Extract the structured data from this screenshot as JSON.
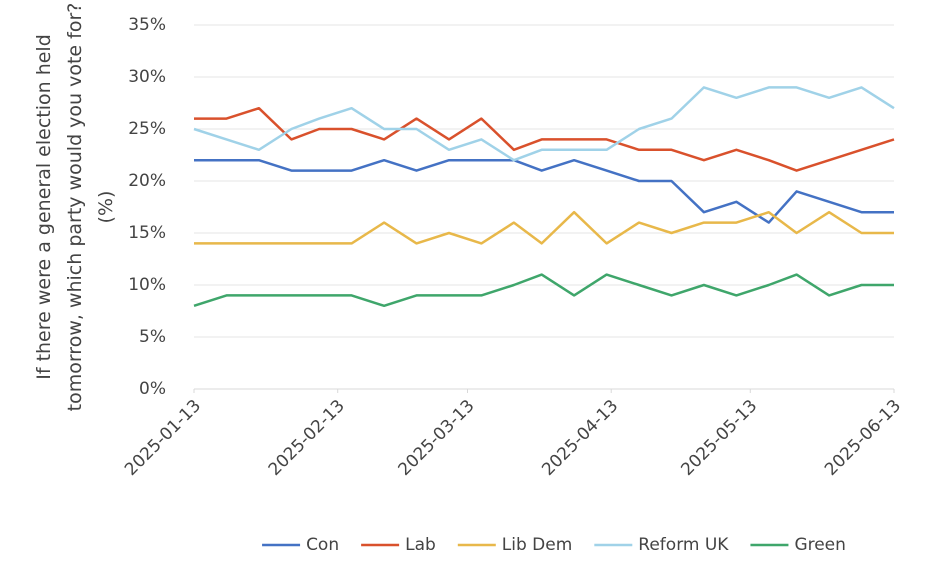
{
  "chart_data": {
    "type": "line",
    "ylabel": [
      "If there were a general election held",
      "tomorrow, which party would you vote for?",
      "(%)"
    ],
    "x": [
      "2025-01-13",
      "2025-01-20",
      "2025-01-27",
      "2025-02-03",
      "2025-02-09",
      "2025-02-16",
      "2025-02-23",
      "2025-03-02",
      "2025-03-09",
      "2025-03-16",
      "2025-03-23",
      "2025-03-29",
      "2025-04-05",
      "2025-04-12",
      "2025-04-19",
      "2025-04-26",
      "2025-05-03",
      "2025-05-10",
      "2025-05-17",
      "2025-05-23",
      "2025-05-30",
      "2025-06-06",
      "2025-06-13"
    ],
    "xlim": [
      "2025-01-13",
      "2025-06-13"
    ],
    "xticks": [
      "2025-01-13",
      "2025-02-13",
      "2025-03-13",
      "2025-04-13",
      "2025-05-13",
      "2025-06-13"
    ],
    "ylim": [
      0,
      35
    ],
    "yticks": [
      {
        "value": 0,
        "label": "0%"
      },
      {
        "value": 5,
        "label": "5%"
      },
      {
        "value": 10,
        "label": "10%"
      },
      {
        "value": 15,
        "label": "15%"
      },
      {
        "value": 20,
        "label": "20%"
      },
      {
        "value": 25,
        "label": "25%"
      },
      {
        "value": 30,
        "label": "30%"
      },
      {
        "value": 35,
        "label": "35%"
      }
    ],
    "grid": true,
    "legend": "bottom",
    "series": [
      {
        "name": "Con",
        "color": "#4472c4",
        "values": [
          22,
          22,
          22,
          21,
          21,
          21,
          22,
          21,
          22,
          22,
          22,
          21,
          22,
          21,
          20,
          20,
          17,
          18,
          16,
          19,
          18,
          17,
          17
        ]
      },
      {
        "name": "Lab",
        "color": "#d9512c",
        "values": [
          26,
          26,
          27,
          24,
          25,
          25,
          24,
          26,
          24,
          26,
          23,
          24,
          24,
          24,
          23,
          23,
          22,
          23,
          22,
          21,
          22,
          23,
          24
        ]
      },
      {
        "name": "Lib Dem",
        "color": "#e8b84a",
        "values": [
          14,
          14,
          14,
          14,
          14,
          14,
          16,
          14,
          15,
          14,
          16,
          14,
          17,
          14,
          16,
          15,
          16,
          16,
          17,
          15,
          17,
          15,
          15
        ]
      },
      {
        "name": "Reform UK",
        "color": "#a0d2e8",
        "values": [
          25,
          24,
          23,
          25,
          26,
          27,
          25,
          25,
          23,
          24,
          22,
          23,
          23,
          23,
          25,
          26,
          29,
          28,
          29,
          29,
          28,
          29,
          27
        ]
      },
      {
        "name": "Green",
        "color": "#3fa66b",
        "values": [
          8,
          9,
          9,
          9,
          9,
          9,
          8,
          9,
          9,
          9,
          10,
          11,
          9,
          11,
          10,
          9,
          10,
          9,
          10,
          11,
          9,
          10,
          10
        ]
      }
    ]
  }
}
